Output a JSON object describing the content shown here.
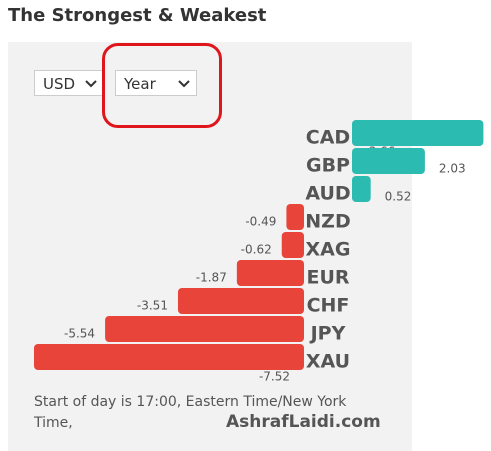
{
  "header": {
    "title": "The Strongest & Weakest"
  },
  "controls": {
    "currency": "USD",
    "period": "Year"
  },
  "chart_data": {
    "type": "bar",
    "orientation": "horizontal",
    "categories": [
      "CAD",
      "GBP",
      "AUD",
      "NZD",
      "XAG",
      "EUR",
      "CHF",
      "JPY",
      "XAU"
    ],
    "values": [
      3.66,
      2.03,
      0.52,
      -0.49,
      -0.62,
      -1.87,
      -3.51,
      -5.54,
      -7.52
    ],
    "positive_color": "#2bbbb0",
    "negative_color": "#e8443a"
  },
  "footer": {
    "note": "Start of day is 17:00, Eastern Time/New York Time,",
    "brand": "AshrafLaidi.com"
  }
}
